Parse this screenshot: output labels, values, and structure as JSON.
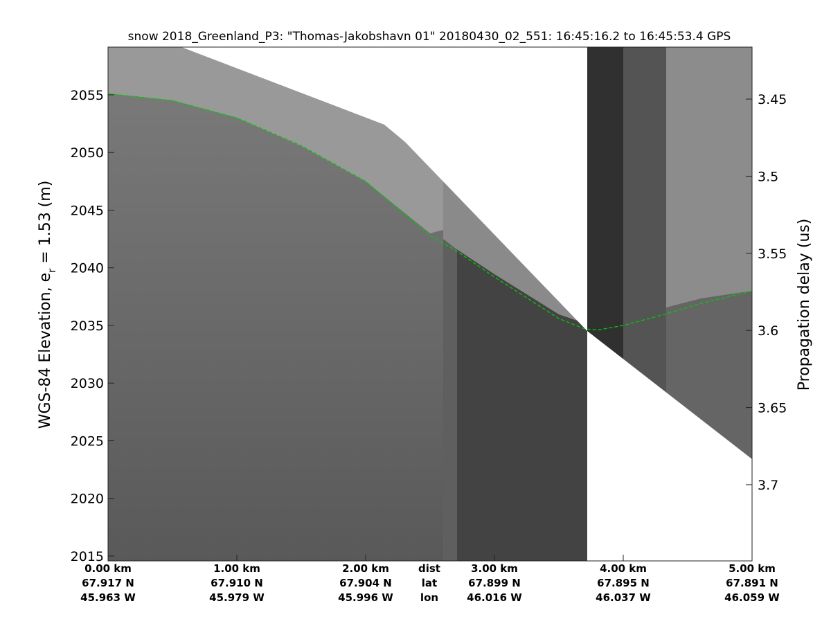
{
  "chart_data": {
    "type": "line",
    "title": "snow 2018_Greenland_P3: \"Thomas-Jakobshavn 01\"  20180430_02_551: 16:45:16.2 to 16:45:53.4 GPS",
    "ylabel_parts": [
      "WGS-84 Elevation, e",
      "r",
      " = 1.53 (m)"
    ],
    "y2label": "Propagation delay (us)",
    "xlim": [
      0,
      5
    ],
    "xticks": [
      {
        "value": 0,
        "label": "0.00 km"
      },
      {
        "value": 1,
        "label": "1.00 km"
      },
      {
        "value": 2,
        "label": "2.00 km"
      },
      {
        "value": 3,
        "label": "3.00 km"
      },
      {
        "value": 4,
        "label": "4.00 km"
      },
      {
        "value": 5,
        "label": "5.00 km"
      }
    ],
    "x_lat_labels": [
      "67.917 N",
      "67.910 N",
      "67.904 N",
      "67.899 N",
      "67.895 N",
      "67.891 N"
    ],
    "x_lon_labels": [
      "45.963 W",
      "45.979 W",
      "45.996 W",
      "46.016 W",
      "46.037 W",
      "46.059 W"
    ],
    "x_row_labels": [
      "dist",
      "lat",
      "lon"
    ],
    "ylim": [
      2014.58,
      2059.14
    ],
    "yticks": [
      2015,
      2020,
      2025,
      2030,
      2035,
      2040,
      2045,
      2050,
      2055
    ],
    "y2lim": [
      3.4163,
      3.7494
    ],
    "y2ticks": [
      3.45,
      3.5,
      3.55,
      3.6,
      3.65,
      3.7
    ],
    "series": [
      {
        "color": "#00cc00",
        "x": [
          0,
          0.5,
          1,
          1.5,
          2,
          2.5,
          2.7,
          3,
          3.5,
          3.7,
          3.8,
          4,
          4.3,
          4.6,
          5
        ],
        "values": [
          2055.1,
          2054.5,
          2053.0,
          2050.6,
          2047.5,
          2042.8,
          2041.5,
          2039.2,
          2035.6,
          2034.7,
          2034.6,
          2035.0,
          2035.9,
          2036.9,
          2038.0
        ]
      }
    ]
  }
}
